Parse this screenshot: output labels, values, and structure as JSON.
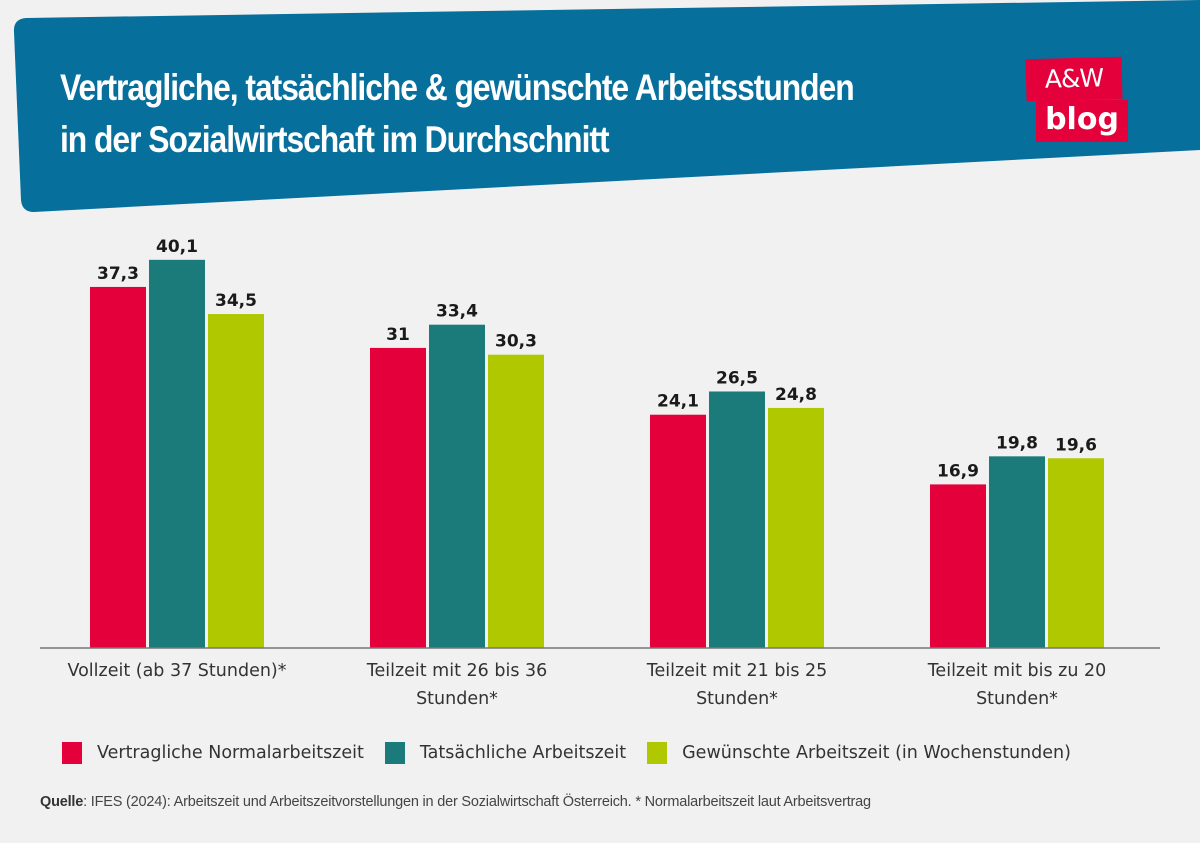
{
  "header": {
    "title_line1": "Vertragliche, tatsächliche & gewünschte Arbeitsstunden",
    "title_line2": "in der Sozialwirtschaft im Durchschnitt",
    "logo_top": "A&W",
    "logo_bottom": "blog",
    "banner_color": "#066f9c",
    "logo_color": "#e4003a"
  },
  "chart_data": {
    "type": "bar",
    "title": "Vertragliche, tatsächliche & gewünschte Arbeitsstunden in der Sozialwirtschaft im Durchschnitt",
    "xlabel": "",
    "ylabel": "",
    "ylim": [
      0,
      40.1
    ],
    "grid": false,
    "legend_position": "bottom",
    "categories": [
      [
        "Vollzeit (ab 37 Stunden)*"
      ],
      [
        "Teilzeit mit 26 bis 36",
        "Stunden*"
      ],
      [
        "Teilzeit mit 21 bis 25",
        "Stunden*"
      ],
      [
        "Teilzeit mit bis zu 20",
        "Stunden*"
      ]
    ],
    "series": [
      {
        "name": "Vertragliche Normalarbeitszeit",
        "color": "#e4003a",
        "values": [
          37.3,
          31,
          24.1,
          16.9
        ],
        "labels": [
          "37,3",
          "31",
          "24,1",
          "16,9"
        ]
      },
      {
        "name": "Tatsächliche Arbeitszeit",
        "color": "#1b7b7b",
        "values": [
          40.1,
          33.4,
          26.5,
          19.8
        ],
        "labels": [
          "40,1",
          "33,4",
          "26,5",
          "19,8"
        ]
      },
      {
        "name": "Gewünschte Arbeitszeit (in Wochenstunden)",
        "color": "#b0c800",
        "values": [
          34.5,
          30.3,
          24.8,
          19.6
        ],
        "labels": [
          "34,5",
          "30,3",
          "24,8",
          "19,6"
        ]
      }
    ]
  },
  "source": {
    "label": "Quelle",
    "text": ": IFES (2024): Arbeitszeit und Arbeitszeitvorstellungen in der Sozialwirtschaft Österreich. * Normalarbeitszeit laut Arbeitsvertrag"
  }
}
